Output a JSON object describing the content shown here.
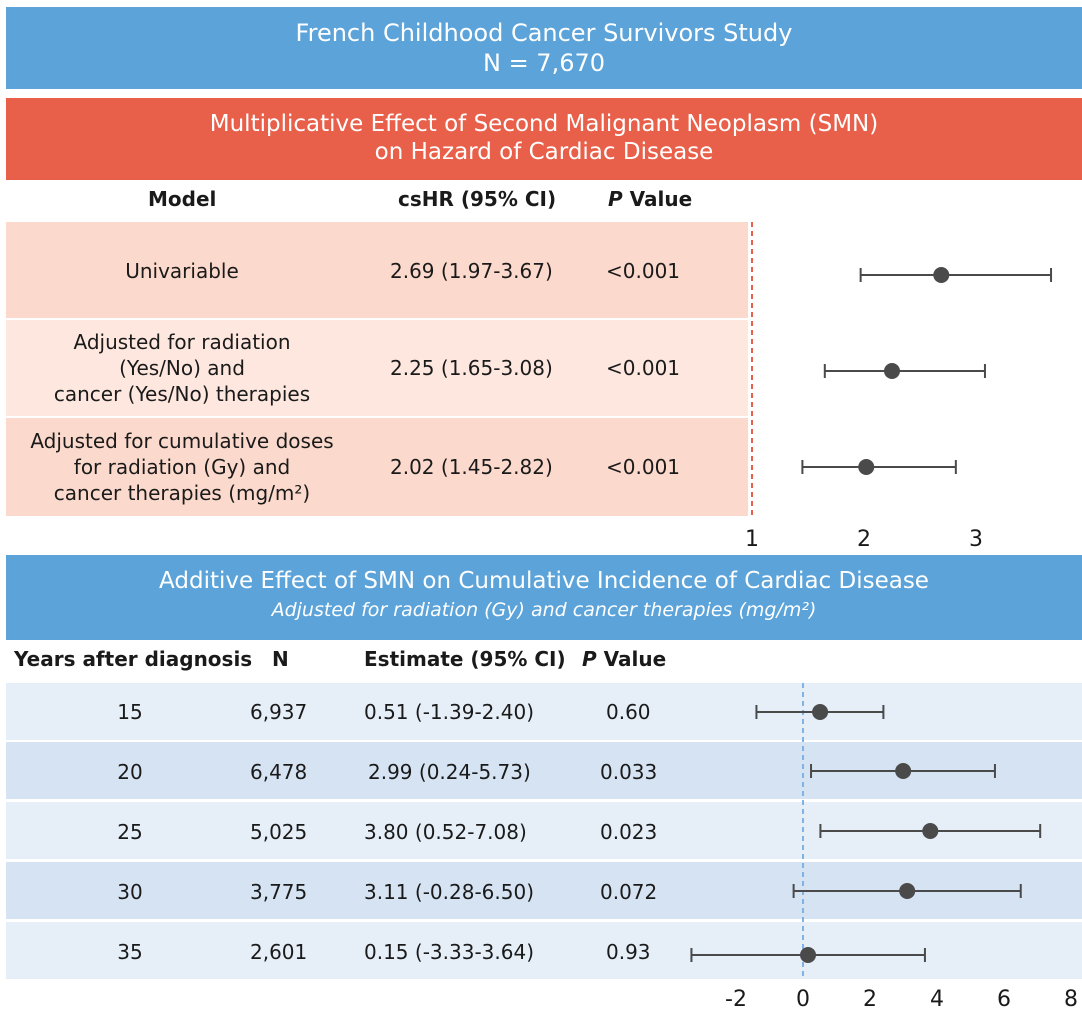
{
  "header": {
    "title": "French Childhood Cancer Survivors Study",
    "n_label": "N = 7,670"
  },
  "multiplicative": {
    "title_line1": "Multiplicative Effect of Second Malignant Neoplasm (SMN)",
    "title_line2": "on Hazard of Cardiac Disease",
    "col_model": "Model",
    "col_hr": "csHR (95% CI)",
    "col_p_italic": "P",
    "col_p_rest": " Value",
    "rows": [
      {
        "model_lines": [
          "Univariable"
        ],
        "hr": "2.69 (1.97-3.67)",
        "p": "<0.001"
      },
      {
        "model_lines": [
          "Adjusted for radiation",
          "(Yes/No) and",
          "cancer (Yes/No) therapies"
        ],
        "hr": "2.25 (1.65-3.08)",
        "p": "<0.001"
      },
      {
        "model_lines": [
          "Adjusted for cumulative doses",
          "for radiation (Gy) and",
          "cancer therapies (mg/m²)"
        ],
        "hr": "2.02 (1.45-2.82)",
        "p": "<0.001"
      }
    ],
    "axis_ticks": [
      "1",
      "2",
      "3"
    ]
  },
  "additive": {
    "title": "Additive Effect of SMN on Cumulative Incidence of Cardiac Disease",
    "subtitle": "Adjusted for radiation (Gy) and cancer therapies (mg/m²)",
    "col_years": "Years after diagnosis",
    "col_n": "N",
    "col_est": "Estimate (95% CI)",
    "col_p_italic": "P",
    "col_p_rest": " Value",
    "rows": [
      {
        "years": "15",
        "n": "6,937",
        "est": "0.51 (-1.39-2.40)",
        "p": "0.60"
      },
      {
        "years": "20",
        "n": "6,478",
        "est": "2.99 (0.24-5.73)",
        "p": "0.033"
      },
      {
        "years": "25",
        "n": "5,025",
        "est": "3.80 (0.52-7.08)",
        "p": "0.023"
      },
      {
        "years": "30",
        "n": "3,775",
        "est": "3.11 (-0.28-6.50)",
        "p": "0.072"
      },
      {
        "years": "35",
        "n": "2,601",
        "est": "0.15 (-3.33-3.64)",
        "p": "0.93"
      }
    ],
    "axis_ticks": [
      "-2",
      "0",
      "2",
      "4",
      "6",
      "8"
    ]
  },
  "colors": {
    "blue_band": "#5ba3d9",
    "red_band": "#e8604a",
    "salmon_row": "#fbd9cc",
    "light_salmon_row": "#fde7df",
    "blue_row_light": "#e6eef8",
    "blue_row_dark": "#d5e3f3",
    "point": "#4a4a4a",
    "ref_red": "#e8604a",
    "ref_blue": "#7fb2e5"
  },
  "chart_data": [
    {
      "type": "forest",
      "title": "Multiplicative Effect of Second Malignant Neoplasm (SMN) on Hazard of Cardiac Disease",
      "xlabel": "",
      "reference_line": 1,
      "xlim": [
        1,
        3.8
      ],
      "x_ticks": [
        1,
        2,
        3
      ],
      "series": [
        {
          "name": "Univariable",
          "estimate": 2.69,
          "lower": 1.97,
          "upper": 3.67
        },
        {
          "name": "Adjusted for radiation (Yes/No) and cancer (Yes/No) therapies",
          "estimate": 2.25,
          "lower": 1.65,
          "upper": 3.08
        },
        {
          "name": "Adjusted for cumulative doses for radiation (Gy) and cancer therapies (mg/m²)",
          "estimate": 2.02,
          "lower": 1.45,
          "upper": 2.82
        }
      ]
    },
    {
      "type": "forest",
      "title": "Additive Effect of SMN on Cumulative Incidence of Cardiac Disease",
      "xlabel": "",
      "reference_line": 0,
      "xlim": [
        -3.4,
        8.3
      ],
      "x_ticks": [
        -2,
        0,
        2,
        4,
        6,
        8
      ],
      "series": [
        {
          "name": "15",
          "estimate": 0.51,
          "lower": -1.39,
          "upper": 2.4
        },
        {
          "name": "20",
          "estimate": 2.99,
          "lower": 0.24,
          "upper": 5.73
        },
        {
          "name": "25",
          "estimate": 3.8,
          "lower": 0.52,
          "upper": 7.08
        },
        {
          "name": "30",
          "estimate": 3.11,
          "lower": -0.28,
          "upper": 6.5
        },
        {
          "name": "35",
          "estimate": 0.15,
          "lower": -3.33,
          "upper": 3.64
        }
      ]
    }
  ]
}
